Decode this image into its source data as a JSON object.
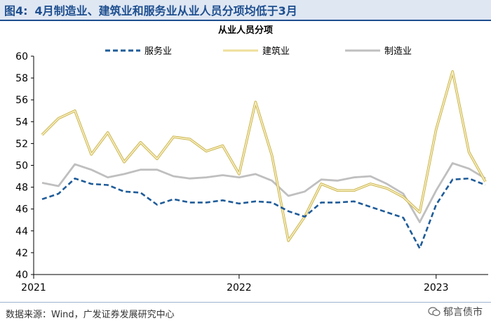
{
  "figure": {
    "label": "图4:",
    "title": "4月制造业、建筑业和服务业从业人员分项均低于3月"
  },
  "footer": {
    "source": "数据来源：Wind，广发证券发展研究中心",
    "watermark": "郁言债市"
  },
  "chart_data": {
    "type": "line",
    "title": "从业人员分项",
    "ylim": [
      40,
      60
    ],
    "yticks": [
      40,
      42,
      44,
      46,
      48,
      50,
      52,
      54,
      56,
      58,
      60
    ],
    "x": [
      "2021-01",
      "2021-02",
      "2021-03",
      "2021-04",
      "2021-05",
      "2021-06",
      "2021-07",
      "2021-08",
      "2021-09",
      "2021-10",
      "2021-11",
      "2021-12",
      "2022-01",
      "2022-02",
      "2022-03",
      "2022-04",
      "2022-05",
      "2022-06",
      "2022-07",
      "2022-08",
      "2022-09",
      "2022-10",
      "2022-11",
      "2022-12",
      "2023-01",
      "2023-02",
      "2023-03",
      "2023-04"
    ],
    "xtick_labels": [
      {
        "label": "2021",
        "at": "2021-01"
      },
      {
        "label": "2022",
        "at": "2022-01"
      },
      {
        "label": "2023",
        "at": "2023-01"
      }
    ],
    "legend_position": "top-center",
    "grid": false,
    "series": [
      {
        "name": "服务业",
        "style": "dashed",
        "color": "#1f5c99",
        "values": [
          46.9,
          47.4,
          48.8,
          48.3,
          48.2,
          47.6,
          47.5,
          46.4,
          46.9,
          46.6,
          46.6,
          46.8,
          46.5,
          46.7,
          46.6,
          45.8,
          45.3,
          46.6,
          46.6,
          46.7,
          46.2,
          45.7,
          45.2,
          42.4,
          46.4,
          48.7,
          48.8,
          48.2
        ]
      },
      {
        "name": "建筑业",
        "style": "solid",
        "color": "#eedf9a",
        "values": [
          52.8,
          54.3,
          55.0,
          51.0,
          53.0,
          50.3,
          52.1,
          50.6,
          52.6,
          52.4,
          51.3,
          51.8,
          49.2,
          55.8,
          50.9,
          43.1,
          45.3,
          48.3,
          47.7,
          47.7,
          48.3,
          47.9,
          47.1,
          45.7,
          53.3,
          58.6,
          51.2,
          48.5
        ]
      },
      {
        "name": "制造业",
        "style": "solid",
        "color": "#bfbfbf",
        "values": [
          48.4,
          48.1,
          50.1,
          49.6,
          48.9,
          49.2,
          49.6,
          49.6,
          49.0,
          48.8,
          48.9,
          49.1,
          48.9,
          49.2,
          48.6,
          47.2,
          47.6,
          48.7,
          48.6,
          48.9,
          49.0,
          48.3,
          47.4,
          44.8,
          47.7,
          50.2,
          49.7,
          48.8
        ]
      }
    ]
  }
}
